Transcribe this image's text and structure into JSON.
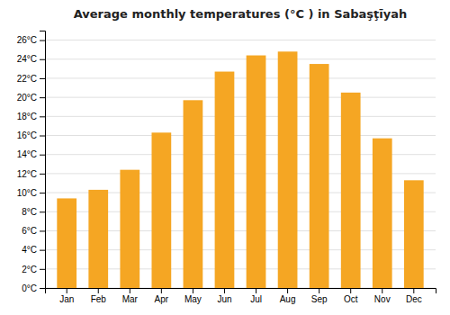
{
  "chart_data": {
    "type": "bar",
    "title": "Average monthly temperatures (°C ) in Sabaşţīyah",
    "categories": [
      "Jan",
      "Feb",
      "Mar",
      "Apr",
      "May",
      "Jun",
      "Jul",
      "Aug",
      "Sep",
      "Oct",
      "Nov",
      "Dec"
    ],
    "values": [
      9.4,
      10.3,
      12.4,
      16.3,
      19.7,
      22.7,
      24.4,
      24.8,
      23.5,
      20.5,
      15.7,
      11.3
    ],
    "color": "#F5A623",
    "ylim": [
      0,
      27
    ],
    "yticks": [
      {
        "value": 0,
        "label": "0°C"
      },
      {
        "value": 2,
        "label": "2°C"
      },
      {
        "value": 4,
        "label": "4°C"
      },
      {
        "value": 6,
        "label": "6°C"
      },
      {
        "value": 8,
        "label": "8°C"
      },
      {
        "value": 10,
        "label": "10°C"
      },
      {
        "value": 12,
        "label": "12°C"
      },
      {
        "value": 14,
        "label": "14°C"
      },
      {
        "value": 16,
        "label": "16°C"
      },
      {
        "value": 18,
        "label": "18°C"
      },
      {
        "value": 20,
        "label": "20°C"
      },
      {
        "value": 22,
        "label": "22°C"
      },
      {
        "value": 24,
        "label": "24°C"
      },
      {
        "value": 26,
        "label": "26°C"
      }
    ],
    "grid": true
  }
}
